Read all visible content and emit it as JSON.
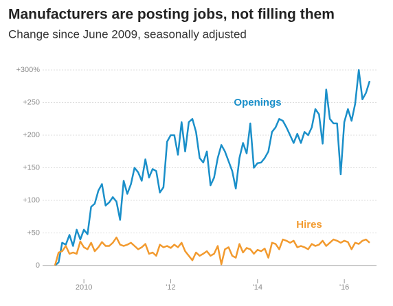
{
  "chart_data": {
    "type": "line",
    "title": "Manufacturers are posting jobs, not filling them",
    "subtitle": "Change since June 2009, seasonally adjusted",
    "categories": [
      null,
      null,
      null,
      null,
      null,
      null,
      null,
      null,
      "2010",
      null,
      null,
      null,
      null,
      null,
      null,
      null,
      null,
      null,
      null,
      null,
      null,
      null,
      null,
      null,
      null,
      null,
      null,
      null,
      null,
      null,
      null,
      null,
      "'12",
      null,
      null,
      null,
      null,
      null,
      null,
      null,
      null,
      null,
      null,
      null,
      null,
      null,
      null,
      null,
      null,
      null,
      null,
      null,
      null,
      null,
      null,
      null,
      "'14",
      null,
      null,
      null,
      null,
      null,
      null,
      null,
      null,
      null,
      null,
      null,
      null,
      null,
      null,
      null,
      null,
      null,
      null,
      null,
      null,
      null,
      null,
      null,
      "'16",
      null,
      null,
      null,
      null,
      null,
      null,
      null
    ],
    "series": [
      {
        "name": "Openings",
        "color": "#1a8fc9",
        "values": [
          0,
          5,
          35,
          32,
          47,
          30,
          55,
          40,
          55,
          48,
          90,
          95,
          115,
          125,
          92,
          97,
          105,
          98,
          70,
          130,
          110,
          125,
          150,
          143,
          130,
          163,
          135,
          148,
          145,
          112,
          120,
          190,
          200,
          200,
          170,
          220,
          175,
          220,
          225,
          205,
          165,
          158,
          175,
          123,
          135,
          165,
          185,
          175,
          160,
          145,
          118,
          165,
          188,
          172,
          218,
          150,
          157,
          158,
          165,
          175,
          205,
          212,
          225,
          222,
          212,
          200,
          188,
          202,
          188,
          205,
          200,
          212,
          240,
          232,
          187,
          270,
          225,
          218,
          218,
          140,
          220,
          240,
          222,
          248,
          300,
          255,
          265,
          283
        ]
      },
      {
        "name": "Hires",
        "color": "#f29a2e",
        "values": [
          0,
          20,
          22,
          30,
          18,
          20,
          18,
          37,
          28,
          25,
          35,
          22,
          28,
          36,
          30,
          30,
          35,
          43,
          32,
          30,
          32,
          35,
          30,
          25,
          28,
          33,
          18,
          20,
          15,
          32,
          28,
          30,
          27,
          32,
          28,
          35,
          22,
          15,
          8,
          20,
          15,
          18,
          22,
          15,
          18,
          30,
          2,
          25,
          28,
          15,
          12,
          33,
          20,
          27,
          25,
          18,
          24,
          22,
          26,
          12,
          35,
          33,
          25,
          40,
          38,
          35,
          38,
          28,
          30,
          28,
          25,
          33,
          30,
          32,
          38,
          30,
          35,
          40,
          38,
          35,
          38,
          36,
          25,
          35,
          33,
          38,
          40,
          35
        ]
      }
    ],
    "ylim": [
      0,
      300
    ],
    "yticks": [
      0,
      {
        "value": 50,
        "label": "+50"
      },
      {
        "value": 100,
        "label": "+100"
      },
      {
        "value": 150,
        "label": "+150"
      },
      {
        "value": 200,
        "label": "+200"
      },
      {
        "value": 250,
        "label": "+250"
      },
      {
        "value": 300,
        "label": "+300%"
      }
    ],
    "grid": true
  }
}
